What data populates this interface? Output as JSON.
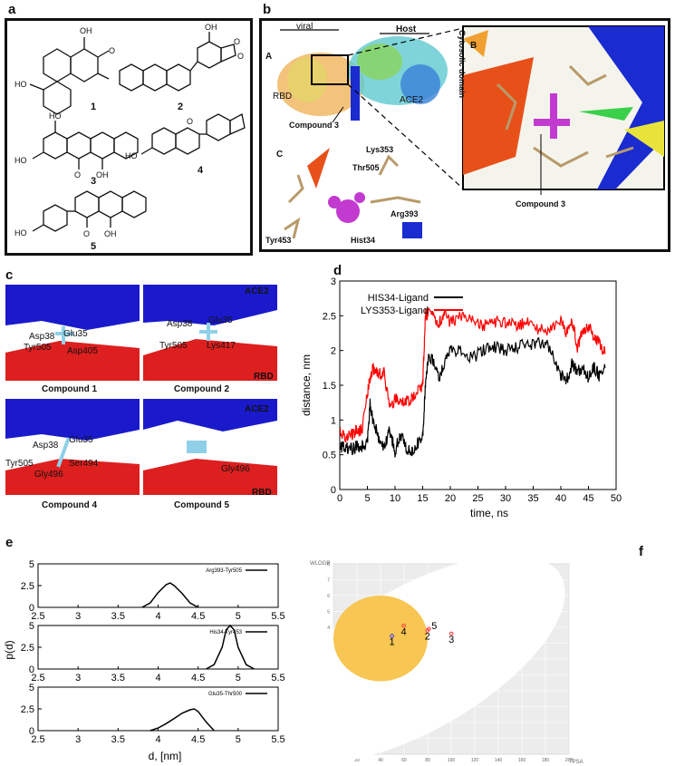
{
  "panels": {
    "a": "a",
    "b": "b",
    "c": "c",
    "d": "d",
    "e": "e",
    "f": "f"
  },
  "panel_a": {
    "compounds": [
      "1",
      "2",
      "3",
      "4",
      "5"
    ]
  },
  "panel_b": {
    "label_A": "A",
    "label_B": "B",
    "label_C": "C",
    "viral": "viral",
    "host": "Host",
    "rbd": "RBD",
    "ace2": "ACE2",
    "cytosolic": "Cytosolic domain",
    "compound_left": "Compound 3",
    "compound_zoom": "Compound 3",
    "residues": [
      "Lys353",
      "Thr505",
      "Arg393",
      "Tyr453",
      "Hist34"
    ]
  },
  "panel_c": {
    "tiles": [
      {
        "caption": "Compound 1",
        "labels": [
          "Asp38",
          "Glu35",
          "Tyr505",
          "Asp405"
        ]
      },
      {
        "caption": "Compound 2",
        "labels": [
          "ACE2",
          "Asp38",
          "Glu35",
          "Tyr505",
          "Lys417",
          "RBD"
        ]
      },
      {
        "caption": "Compound 4",
        "labels": [
          "Asp38",
          "Glu35",
          "Tyr505",
          "Ser494",
          "Gly496"
        ]
      },
      {
        "caption": "Compound 5",
        "labels": [
          "ACE2",
          "Gly496",
          "RBD"
        ]
      }
    ]
  },
  "chart_data": [
    {
      "type": "line",
      "title": "",
      "xlabel": "time, ns",
      "ylabel": "distance, nm",
      "xlim": [
        0,
        50
      ],
      "ylim": [
        0,
        3
      ],
      "xticks": [
        "0",
        "5",
        "10",
        "15",
        "20",
        "25",
        "30",
        "35",
        "40",
        "45",
        "50"
      ],
      "yticks": [
        "0",
        "0.5",
        "1",
        "1.5",
        "2",
        "2.5",
        "3"
      ],
      "legend_position": "top-left",
      "series": [
        {
          "name": "HIS34-Ligand",
          "color": "#000000",
          "x": [
            0,
            1,
            2,
            3,
            4,
            5,
            5.5,
            6,
            7,
            8,
            9,
            10,
            11,
            12,
            13,
            14,
            15,
            15.5,
            16,
            17,
            18,
            19,
            20,
            22,
            24,
            26,
            28,
            30,
            32,
            34,
            36,
            38,
            40,
            41,
            42,
            43,
            44,
            45,
            46,
            47,
            48
          ],
          "y": [
            0.6,
            0.62,
            0.58,
            0.62,
            0.6,
            0.7,
            1.25,
            1.0,
            0.75,
            0.6,
            0.85,
            0.55,
            0.8,
            0.6,
            0.55,
            0.65,
            0.75,
            1.5,
            1.9,
            1.85,
            1.6,
            1.85,
            2.0,
            2.0,
            1.9,
            2.0,
            2.05,
            2.0,
            2.05,
            2.1,
            2.1,
            2.05,
            1.65,
            1.55,
            1.8,
            1.7,
            1.75,
            1.6,
            1.75,
            1.65,
            1.75
          ]
        },
        {
          "name": "LYS353-Ligand",
          "color": "#ff0000",
          "x": [
            0,
            1,
            2,
            3,
            4,
            5,
            5.5,
            6,
            7,
            8,
            9,
            10,
            11,
            12,
            13,
            14,
            15,
            15.5,
            16,
            17,
            18,
            19,
            20,
            22,
            24,
            26,
            28,
            30,
            32,
            34,
            36,
            38,
            40,
            41,
            42,
            43,
            44,
            45,
            46,
            47,
            48
          ],
          "y": [
            0.8,
            0.75,
            0.78,
            0.85,
            0.85,
            1.4,
            1.6,
            1.75,
            1.65,
            1.7,
            1.2,
            1.3,
            1.25,
            1.3,
            1.3,
            1.45,
            1.5,
            2.5,
            2.55,
            2.5,
            2.4,
            2.5,
            2.4,
            2.5,
            2.45,
            2.35,
            2.4,
            2.4,
            2.35,
            2.4,
            2.3,
            2.3,
            2.4,
            2.25,
            2.45,
            2.05,
            2.3,
            2.35,
            2.2,
            2.1,
            1.95
          ]
        }
      ]
    },
    {
      "type": "line",
      "title": "",
      "xlabel": "d, [nm]",
      "ylabel": "p(d)",
      "xlim": [
        2.5,
        5.5
      ],
      "ylim": [
        0,
        5
      ],
      "xticks": [
        "2.5",
        "3",
        "3.5",
        "4",
        "4.5",
        "5",
        "5.5"
      ],
      "yticks": [
        "0",
        "2.5",
        "5"
      ],
      "subplots": [
        {
          "name": "Arg393-Tyr505",
          "x": [
            3.8,
            3.9,
            4.0,
            4.1,
            4.15,
            4.2,
            4.3,
            4.4,
            4.5
          ],
          "y": [
            0,
            0.5,
            1.7,
            2.6,
            2.8,
            2.5,
            1.6,
            0.5,
            0
          ]
        },
        {
          "name": "His34-Tyr453",
          "x": [
            4.6,
            4.7,
            4.8,
            4.85,
            4.9,
            4.95,
            5.0,
            5.1,
            5.2
          ],
          "y": [
            0,
            0.5,
            2.5,
            4.5,
            5.5,
            4.5,
            2.5,
            0.5,
            0
          ]
        },
        {
          "name": "Glu35-Thr500",
          "x": [
            3.9,
            4.0,
            4.1,
            4.2,
            4.3,
            4.4,
            4.45,
            4.5,
            4.6,
            4.7
          ],
          "y": [
            0,
            0.3,
            0.8,
            1.4,
            2.0,
            2.4,
            2.5,
            2.2,
            1.0,
            0
          ]
        }
      ]
    },
    {
      "type": "scatter",
      "title": "",
      "xlabel": "TPSA",
      "ylabel": "WLOGP",
      "xlim": [
        0,
        200
      ],
      "ylim": [
        -4,
        8
      ],
      "xticks": [
        "0",
        "20",
        "40",
        "60",
        "80",
        "100",
        "120",
        "140",
        "160",
        "180",
        "200"
      ],
      "yticks": [
        "-4",
        "-3",
        "-2",
        "-1",
        "0",
        "1",
        "2",
        "3",
        "4",
        "5",
        "6",
        "7",
        "8"
      ],
      "points": [
        {
          "label": "1",
          "x": 49.7,
          "y": 3.45,
          "color": "#3333ff"
        },
        {
          "label": "4",
          "x": 59.7,
          "y": 4.1,
          "color": "#ff3333"
        },
        {
          "label": "2",
          "x": 79.9,
          "y": 3.8,
          "color": "#ff3333"
        },
        {
          "label": "5",
          "x": 81.0,
          "y": 3.9,
          "color": "#ff3333"
        },
        {
          "label": "3",
          "x": 100.1,
          "y": 3.6,
          "color": "#ff3333"
        }
      ]
    }
  ]
}
